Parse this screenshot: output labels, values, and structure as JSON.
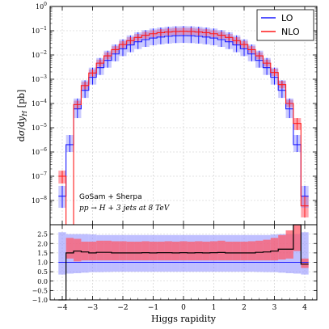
{
  "colors": {
    "lo": "#1a1aff",
    "lo_band": "#8a8aff",
    "nlo": "#ff1a1a",
    "nlo_band": "#ff5a6a",
    "ratio_line": "#000000",
    "grid": "#c8c8c8"
  },
  "chart_data": [
    {
      "type": "line",
      "ylabel": "dσ/dy_H [pb]",
      "ylabel_mathparts": {
        "d": "d",
        "sigma": "σ",
        "slash": "/d",
        "y": "y",
        "sub": "H",
        "unit": " [pb]"
      },
      "yscale": "log",
      "ylim": [
        1e-09,
        1
      ],
      "xlim": [
        -4.4,
        4.4
      ],
      "grid": true,
      "legend_position": "top-right",
      "y_tick_labels": [
        {
          "base": "10",
          "exp": "0"
        },
        {
          "base": "10",
          "exp": "−1"
        },
        {
          "base": "10",
          "exp": "−2"
        },
        {
          "base": "10",
          "exp": "−3"
        },
        {
          "base": "10",
          "exp": "−4"
        },
        {
          "base": "10",
          "exp": "−5"
        },
        {
          "base": "10",
          "exp": "−6"
        },
        {
          "base": "10",
          "exp": "−7"
        },
        {
          "base": "10",
          "exp": "−8"
        }
      ],
      "annotations": [
        "GoSam + Sherpa",
        "pp → H + 3 jets at 8 TeV"
      ],
      "bin_centers": [
        -4.0,
        -3.75,
        -3.5,
        -3.25,
        -3.0,
        -2.75,
        -2.5,
        -2.25,
        -2.0,
        -1.75,
        -1.5,
        -1.25,
        -1.0,
        -0.75,
        -0.5,
        -0.25,
        0.0,
        0.25,
        0.5,
        0.75,
        1.0,
        1.25,
        1.5,
        1.75,
        2.0,
        2.25,
        2.5,
        2.75,
        3.0,
        3.25,
        3.5,
        3.75,
        4.0
      ],
      "bin_width": 0.25,
      "series": [
        {
          "name": "LO",
          "values": [
            1.5e-08,
            2e-06,
            6e-05,
            0.00035,
            0.0012,
            0.003,
            0.006,
            0.011,
            0.018,
            0.026,
            0.035,
            0.043,
            0.05,
            0.055,
            0.059,
            0.062,
            0.063,
            0.062,
            0.059,
            0.055,
            0.05,
            0.043,
            0.035,
            0.026,
            0.018,
            0.011,
            0.006,
            0.003,
            0.0012,
            0.00035,
            6e-05,
            2e-06,
            1.5e-08
          ],
          "band_low": [
            5e-09,
            1e-06,
            2.5e-05,
            0.00017,
            0.0006,
            0.0015,
            0.003,
            0.0055,
            0.009,
            0.013,
            0.0175,
            0.0215,
            0.025,
            0.0275,
            0.0295,
            0.031,
            0.0315,
            0.031,
            0.0295,
            0.0275,
            0.025,
            0.0215,
            0.0175,
            0.013,
            0.009,
            0.0055,
            0.003,
            0.0015,
            0.0006,
            0.00017,
            2.5e-05,
            1e-06,
            5e-09
          ],
          "band_high": [
            4e-08,
            5e-06,
            0.00016,
            0.0009,
            0.003,
            0.0075,
            0.015,
            0.027,
            0.044,
            0.064,
            0.086,
            0.106,
            0.123,
            0.135,
            0.145,
            0.152,
            0.155,
            0.152,
            0.145,
            0.135,
            0.123,
            0.106,
            0.086,
            0.064,
            0.044,
            0.027,
            0.015,
            0.0075,
            0.003,
            0.0009,
            0.00016,
            5e-06,
            4e-08
          ]
        },
        {
          "name": "NLO",
          "values": [
            1e-07,
            1e-09,
            9e-05,
            0.00055,
            0.0018,
            0.0046,
            0.0092,
            0.0165,
            0.027,
            0.039,
            0.053,
            0.065,
            0.075,
            0.083,
            0.089,
            0.093,
            0.095,
            0.093,
            0.089,
            0.083,
            0.075,
            0.065,
            0.053,
            0.039,
            0.027,
            0.0165,
            0.0092,
            0.0046,
            0.0019,
            0.0006,
            0.0001,
            1.5e-05,
            6e-09
          ],
          "band_low": [
            5e-08,
            1e-09,
            6e-05,
            0.00038,
            0.0013,
            0.0033,
            0.0066,
            0.012,
            0.0195,
            0.028,
            0.038,
            0.047,
            0.054,
            0.06,
            0.064,
            0.067,
            0.068,
            0.067,
            0.064,
            0.06,
            0.054,
            0.047,
            0.038,
            0.028,
            0.0195,
            0.012,
            0.0066,
            0.0033,
            0.00135,
            0.00042,
            7e-05,
            8e-06,
            2e-09
          ],
          "band_high": [
            1.7e-07,
            1e-09,
            0.00013,
            0.00078,
            0.0025,
            0.0064,
            0.0128,
            0.023,
            0.0375,
            0.054,
            0.073,
            0.09,
            0.104,
            0.115,
            0.123,
            0.129,
            0.131,
            0.129,
            0.123,
            0.115,
            0.104,
            0.09,
            0.073,
            0.054,
            0.0375,
            0.023,
            0.0128,
            0.0064,
            0.0027,
            0.00085,
            0.00014,
            2.5e-05,
            1.5e-08
          ]
        }
      ]
    },
    {
      "type": "line",
      "xlabel": "Higgs rapidity",
      "ylim": [
        -1.0,
        3.0
      ],
      "xlim": [
        -4.4,
        4.4
      ],
      "grid": true,
      "y_tick_labels": [
        "2.5",
        "2.0",
        "1.5",
        "1.0",
        "0.5",
        "0.0",
        "−0.5",
        "−1.0"
      ],
      "x_tick_labels": [
        "−4",
        "−3",
        "−2",
        "−1",
        "0",
        "1",
        "2",
        "3",
        "4"
      ],
      "x_ticks": [
        -4,
        -3,
        -2,
        -1,
        0,
        1,
        2,
        3,
        4
      ],
      "bin_centers": [
        -4.0,
        -3.75,
        -3.5,
        -3.25,
        -3.0,
        -2.75,
        -2.5,
        -2.25,
        -2.0,
        -1.75,
        -1.5,
        -1.25,
        -1.0,
        -0.75,
        -0.5,
        -0.25,
        0.0,
        0.25,
        0.5,
        0.75,
        1.0,
        1.25,
        1.5,
        1.75,
        2.0,
        2.25,
        2.5,
        2.75,
        3.0,
        3.25,
        3.5,
        3.75,
        4.0
      ],
      "bin_width": 0.25,
      "series": [
        {
          "name": "LO",
          "values": [
            1.0,
            1.0,
            1.0,
            1.0,
            1.0,
            1.0,
            1.0,
            1.0,
            1.0,
            1.0,
            1.0,
            1.0,
            1.0,
            1.0,
            1.0,
            1.0,
            1.0,
            1.0,
            1.0,
            1.0,
            1.0,
            1.0,
            1.0,
            1.0,
            1.0,
            1.0,
            1.0,
            1.0,
            1.0,
            1.0,
            1.0,
            1.0,
            1.0
          ],
          "band_low": [
            0.35,
            0.4,
            0.42,
            0.45,
            0.48,
            0.48,
            0.49,
            0.5,
            0.5,
            0.5,
            0.5,
            0.5,
            0.5,
            0.5,
            0.5,
            0.5,
            0.5,
            0.5,
            0.5,
            0.5,
            0.5,
            0.5,
            0.5,
            0.5,
            0.5,
            0.5,
            0.49,
            0.48,
            0.48,
            0.45,
            0.42,
            0.4,
            0.35
          ],
          "band_high": [
            2.6,
            2.5,
            2.5,
            2.5,
            2.48,
            2.45,
            2.45,
            2.45,
            2.45,
            2.45,
            2.45,
            2.45,
            2.45,
            2.45,
            2.45,
            2.45,
            2.45,
            2.45,
            2.45,
            2.45,
            2.45,
            2.45,
            2.45,
            2.45,
            2.45,
            2.45,
            2.45,
            2.45,
            2.48,
            2.5,
            2.5,
            2.5,
            2.6
          ]
        },
        {
          "name": "NLO",
          "values": [
            -1.0,
            1.5,
            1.6,
            1.55,
            1.5,
            1.53,
            1.53,
            1.5,
            1.5,
            1.5,
            1.5,
            1.51,
            1.5,
            1.51,
            1.51,
            1.5,
            1.51,
            1.5,
            1.51,
            1.5,
            1.51,
            1.52,
            1.5,
            1.5,
            1.5,
            1.5,
            1.53,
            1.55,
            1.6,
            1.7,
            1.7,
            3.0,
            0.9
          ],
          "band_low": [
            -1.0,
            1.2,
            1.05,
            1.1,
            1.1,
            1.1,
            1.1,
            1.1,
            1.1,
            1.1,
            1.1,
            1.1,
            1.1,
            1.1,
            1.1,
            1.1,
            1.1,
            1.1,
            1.1,
            1.1,
            1.1,
            1.1,
            1.1,
            1.1,
            1.1,
            1.1,
            1.1,
            1.1,
            1.1,
            1.15,
            1.2,
            1.6,
            0.7
          ],
          "band_high": [
            -1.0,
            2.3,
            2.25,
            2.1,
            2.1,
            2.15,
            2.15,
            2.12,
            2.12,
            2.1,
            2.1,
            2.12,
            2.1,
            2.1,
            2.12,
            2.1,
            2.12,
            2.1,
            2.12,
            2.1,
            2.12,
            2.15,
            2.1,
            2.1,
            2.1,
            2.12,
            2.15,
            2.2,
            2.3,
            2.45,
            2.7,
            3.0,
            1.2
          ]
        }
      ]
    }
  ]
}
